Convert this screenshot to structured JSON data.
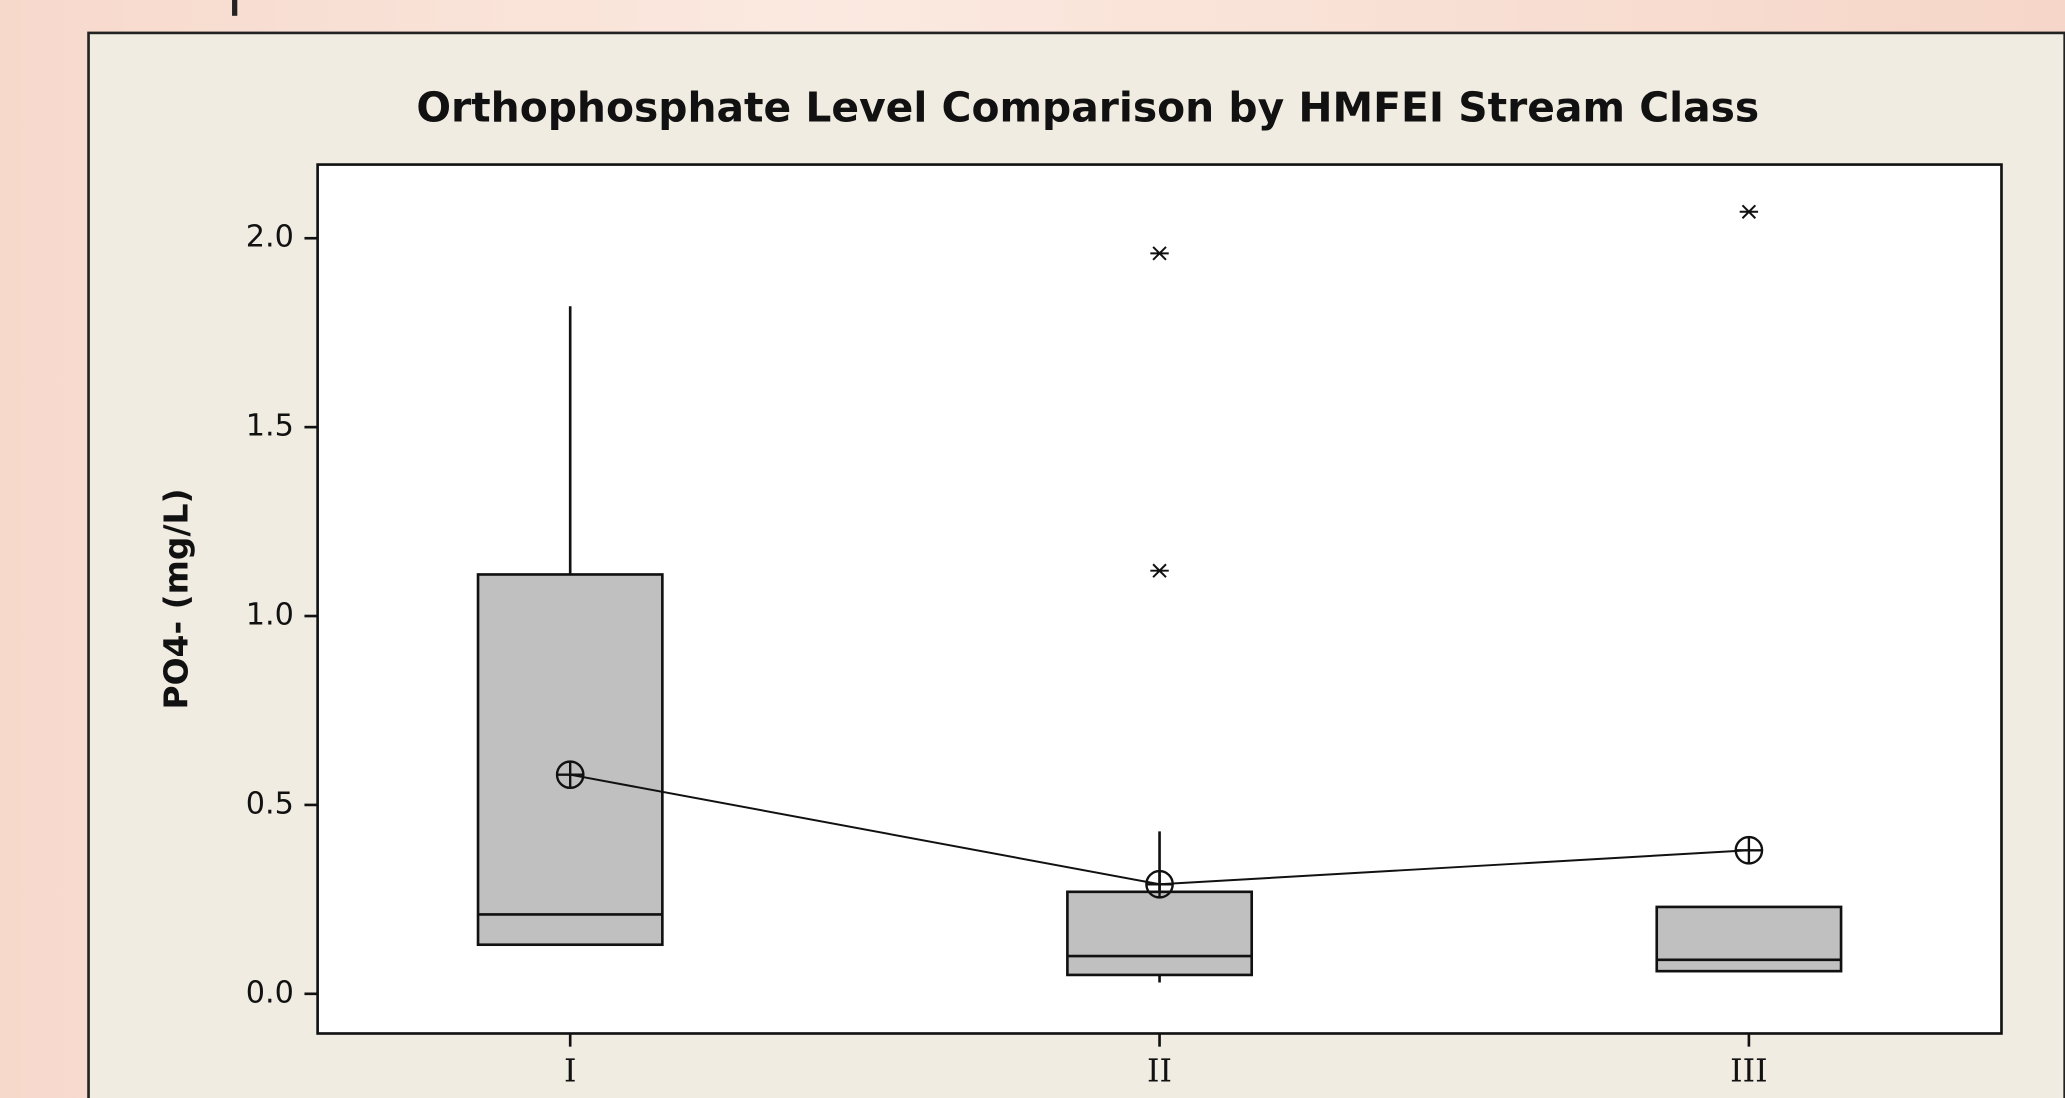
{
  "chart_data": {
    "type": "box",
    "title": "Orthophosphate Level Comparison by HMFEI Stream Class",
    "y_label": "PO4- (mg/L)",
    "categories": [
      "I",
      "II",
      "III"
    ],
    "color": "#c0c0c0",
    "boxes": [
      {
        "whisker_low": 0.13,
        "q1": 0.13,
        "median": 0.21,
        "q3": 1.11,
        "whisker_high": 1.82,
        "mean": 0.58,
        "outliers": []
      },
      {
        "whisker_low": 0.03,
        "q1": 0.05,
        "median": 0.1,
        "q3": 0.27,
        "whisker_high": 0.43,
        "mean": 0.29,
        "outliers": [
          1.96,
          1.12
        ]
      },
      {
        "whisker_low": 0.06,
        "q1": 0.06,
        "median": 0.09,
        "q3": 0.23,
        "whisker_high": 0.23,
        "mean": 0.38,
        "outliers": [
          2.07
        ]
      }
    ],
    "ylim": [
      -0.105,
      2.195
    ],
    "yticks": [
      {
        "value": 0,
        "label": "0.0"
      },
      {
        "value": 0.5,
        "label": "0.5"
      },
      {
        "value": 1,
        "label": "1.0"
      },
      {
        "value": 1.5,
        "label": "1.5"
      },
      {
        "value": 2,
        "label": "2.0"
      }
    ]
  }
}
